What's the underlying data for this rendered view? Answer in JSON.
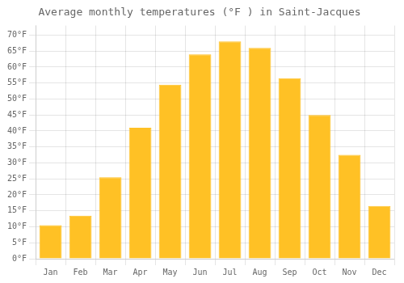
{
  "chart_data": {
    "type": "bar",
    "title": "Average monthly temperatures (°F ) in Saint-Jacques",
    "categories": [
      "Jan",
      "Feb",
      "Mar",
      "Apr",
      "May",
      "Jun",
      "Jul",
      "Aug",
      "Sep",
      "Oct",
      "Nov",
      "Dec"
    ],
    "values": [
      10.5,
      13.5,
      25.5,
      41.0,
      54.5,
      64.0,
      68.0,
      66.0,
      56.5,
      45.0,
      32.5,
      16.5
    ],
    "color": "#FFC125",
    "ylim": [
      0,
      73
    ],
    "yticks": [
      {
        "value": 0,
        "label": "0°F"
      },
      {
        "value": 5,
        "label": "5°F"
      },
      {
        "value": 10,
        "label": "10°F"
      },
      {
        "value": 15,
        "label": "15°F"
      },
      {
        "value": 20,
        "label": "20°F"
      },
      {
        "value": 25,
        "label": "25°F"
      },
      {
        "value": 30,
        "label": "30°F"
      },
      {
        "value": 35,
        "label": "35°F"
      },
      {
        "value": 40,
        "label": "40°F"
      },
      {
        "value": 45,
        "label": "45°F"
      },
      {
        "value": 50,
        "label": "50°F"
      },
      {
        "value": 55,
        "label": "55°F"
      },
      {
        "value": 60,
        "label": "60°F"
      },
      {
        "value": 65,
        "label": "65°F"
      },
      {
        "value": 70,
        "label": "70°F"
      }
    ],
    "grid": true
  }
}
